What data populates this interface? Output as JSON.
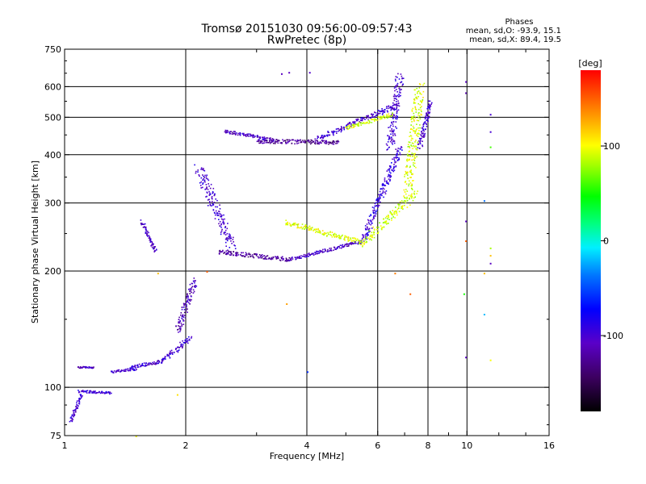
{
  "chart_data": {
    "type": "scatter",
    "title": "Tromsø 20151030 09:56:00-09:57:43",
    "subtitle": "RwPretec (8p)",
    "phase_stats": {
      "header": "Phases",
      "line_o": "mean, sd,O: -93.9, 15.1",
      "line_x": "mean, sd,X:  89.4, 19.5"
    },
    "xlabel": "Frequency [MHz]",
    "ylabel": "Stationary phase Virtual Height [km]",
    "x_scale": "log",
    "y_scale": "log",
    "xlim": [
      1,
      16
    ],
    "ylim": [
      75,
      750
    ],
    "x_ticks": [
      1,
      2,
      4,
      6,
      8,
      10,
      16
    ],
    "x_tick_labels": [
      "1",
      "2",
      "4",
      "6",
      "8",
      "10",
      "16"
    ],
    "y_ticks": [
      75,
      100,
      200,
      300,
      400,
      500,
      600,
      750
    ],
    "y_tick_labels": [
      "75",
      "100",
      "200",
      "300",
      "400",
      "500",
      "600",
      "750"
    ],
    "grid_x": [
      2,
      4,
      6,
      8,
      10
    ],
    "grid_y": [
      100,
      200,
      300,
      400,
      500,
      600
    ],
    "colorbar": {
      "label": "[deg]",
      "range": [
        -180,
        180
      ],
      "ticks": [
        100,
        0,
        -100
      ],
      "tick_labels": [
        "100",
        "0",
        "-100"
      ]
    },
    "traces": [
      {
        "x_start": 1.03,
        "x_end": 1.1,
        "h_start": 82,
        "h_end": 96,
        "phase": -100,
        "scatter": 4
      },
      {
        "x_start": 1.08,
        "x_end": 1.3,
        "h_start": 98,
        "h_end": 97,
        "phase": -100,
        "scatter": 3
      },
      {
        "x_start": 1.08,
        "x_end": 1.18,
        "h_start": 113,
        "h_end": 113,
        "phase": -105,
        "scatter": 2
      },
      {
        "x_start": 1.3,
        "x_end": 1.5,
        "h_start": 110,
        "h_end": 112,
        "phase": -100,
        "scatter": 3
      },
      {
        "x_start": 1.45,
        "x_end": 1.75,
        "h_start": 113,
        "h_end": 117,
        "phase": -100,
        "scatter": 4
      },
      {
        "x_start": 1.75,
        "x_end": 2.05,
        "h_start": 118,
        "h_end": 135,
        "phase": -100,
        "scatter": 6
      },
      {
        "x_start": 1.9,
        "x_end": 2.1,
        "h_start": 140,
        "h_end": 190,
        "phase": -110,
        "scatter": 8
      },
      {
        "x_start": 1.55,
        "x_end": 1.68,
        "h_start": 270,
        "h_end": 225,
        "phase": -105,
        "scatter": 4
      },
      {
        "x_start": 2.15,
        "x_end": 2.6,
        "h_start": 370,
        "h_end": 230,
        "phase": -100,
        "scatter": 12
      },
      {
        "x_start": 2.4,
        "x_end": 3.6,
        "h_start": 225,
        "h_end": 215,
        "phase": -125,
        "scatter": 5
      },
      {
        "x_start": 3.6,
        "x_end": 5.5,
        "h_start": 215,
        "h_end": 240,
        "phase": -105,
        "scatter": 4
      },
      {
        "x_start": 5.5,
        "x_end": 6.8,
        "h_start": 240,
        "h_end": 420,
        "phase": -95,
        "scatter": 8
      },
      {
        "x_start": 6.4,
        "x_end": 6.8,
        "h_start": 420,
        "h_end": 640,
        "phase": -100,
        "scatter": 10
      },
      {
        "x_start": 3.5,
        "x_end": 5.5,
        "h_start": 268,
        "h_end": 238,
        "phase": 95,
        "scatter": 6
      },
      {
        "x_start": 5.5,
        "x_end": 7.4,
        "h_start": 236,
        "h_end": 320,
        "phase": 88,
        "scatter": 10
      },
      {
        "x_start": 7.1,
        "x_end": 7.6,
        "h_start": 320,
        "h_end": 600,
        "phase": 92,
        "scatter": 12
      },
      {
        "x_start": 2.5,
        "x_end": 3.3,
        "h_start": 462,
        "h_end": 438,
        "phase": -105,
        "scatter": 4
      },
      {
        "x_start": 3.0,
        "x_end": 4.8,
        "h_start": 435,
        "h_end": 432,
        "phase": -125,
        "scatter": 5
      },
      {
        "x_start": 4.2,
        "x_end": 6.7,
        "h_start": 440,
        "h_end": 540,
        "phase": -100,
        "scatter": 6
      },
      {
        "x_start": 5.0,
        "x_end": 6.5,
        "h_start": 470,
        "h_end": 510,
        "phase": 90,
        "scatter": 4
      },
      {
        "x_start": 7.6,
        "x_end": 8.1,
        "h_start": 420,
        "h_end": 550,
        "phase": -100,
        "scatter": 6
      }
    ],
    "isolated_points": [
      {
        "x": 3.45,
        "h": 650,
        "phase": -110
      },
      {
        "x": 3.6,
        "h": 655,
        "phase": -110
      },
      {
        "x": 4.05,
        "h": 655,
        "phase": -105
      },
      {
        "x": 4.0,
        "h": 110,
        "phase": -60
      },
      {
        "x": 3.55,
        "h": 165,
        "phase": 130
      },
      {
        "x": 7.2,
        "h": 175,
        "phase": 150
      },
      {
        "x": 6.6,
        "h": 198,
        "phase": 140
      },
      {
        "x": 9.9,
        "h": 620,
        "phase": -110
      },
      {
        "x": 9.9,
        "h": 580,
        "phase": -120
      },
      {
        "x": 9.9,
        "h": 270,
        "phase": -110
      },
      {
        "x": 9.9,
        "h": 240,
        "phase": 150
      },
      {
        "x": 9.8,
        "h": 175,
        "phase": 50
      },
      {
        "x": 9.9,
        "h": 120,
        "phase": -110
      },
      {
        "x": 11.4,
        "h": 510,
        "phase": -100
      },
      {
        "x": 11.4,
        "h": 460,
        "phase": -100
      },
      {
        "x": 11.4,
        "h": 420,
        "phase": 60
      },
      {
        "x": 11.0,
        "h": 305,
        "phase": -40
      },
      {
        "x": 11.4,
        "h": 230,
        "phase": 80
      },
      {
        "x": 11.4,
        "h": 220,
        "phase": 120
      },
      {
        "x": 11.4,
        "h": 210,
        "phase": -110
      },
      {
        "x": 11.0,
        "h": 198,
        "phase": 120
      },
      {
        "x": 11.0,
        "h": 155,
        "phase": -20
      },
      {
        "x": 11.4,
        "h": 118,
        "phase": 100
      },
      {
        "x": 2.25,
        "h": 200,
        "phase": 150
      },
      {
        "x": 1.9,
        "h": 96,
        "phase": 110
      },
      {
        "x": 1.5,
        "h": 75,
        "phase": 100
      },
      {
        "x": 1.7,
        "h": 198,
        "phase": 120
      }
    ]
  }
}
